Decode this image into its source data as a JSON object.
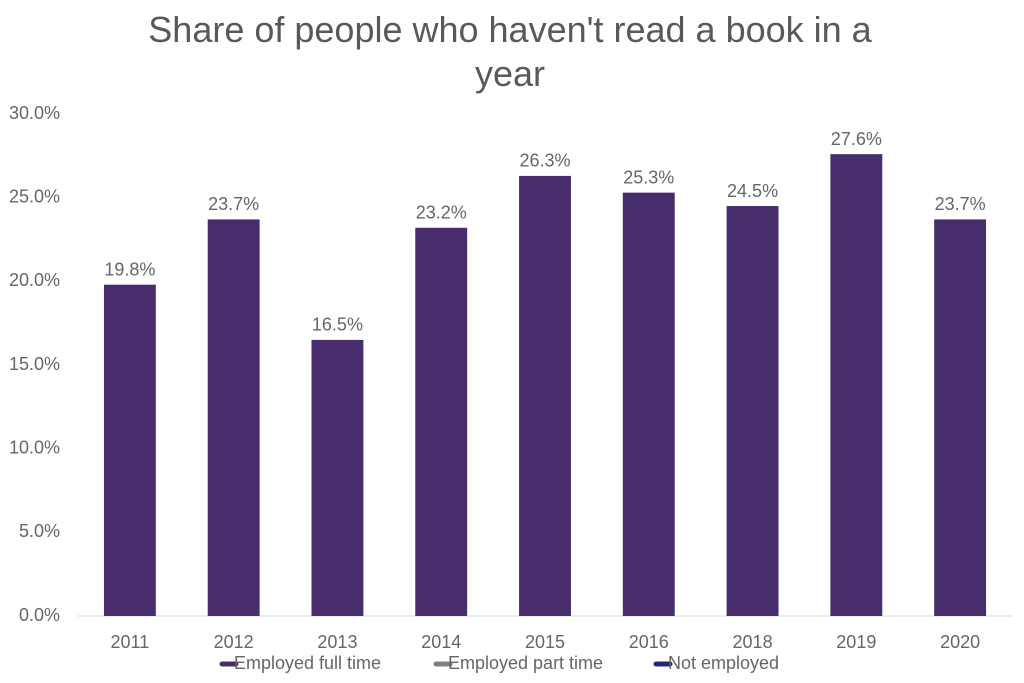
{
  "chart_data": {
    "type": "bar",
    "title": "Share of people who haven't read a book in a year",
    "categories": [
      "2011",
      "2012",
      "2013",
      "2014",
      "2015",
      "2016",
      "2018",
      "2019",
      "2020"
    ],
    "series": [
      {
        "name": "Employed full time",
        "color": "#482d6d",
        "values": [
          19.8,
          23.7,
          16.5,
          23.2,
          26.3,
          25.3,
          24.5,
          27.6,
          23.7
        ],
        "value_labels": [
          "19.8%",
          "23.7%",
          "16.5%",
          "23.2%",
          "26.3%",
          "25.3%",
          "24.5%",
          "27.6%",
          "23.7%"
        ]
      },
      {
        "name": "Employed part time",
        "color": "#808080",
        "values": [
          null,
          null,
          null,
          null,
          null,
          null,
          null,
          null,
          null
        ]
      },
      {
        "name": "Not employed",
        "color": "#1f2a78",
        "values": [
          null,
          null,
          null,
          null,
          null,
          null,
          null,
          null,
          null
        ]
      }
    ],
    "ylim": [
      0,
      30
    ],
    "yticks": [
      {
        "value": 0,
        "label": "0.0%"
      },
      {
        "value": 5,
        "label": "5.0%"
      },
      {
        "value": 10,
        "label": "10.0%"
      },
      {
        "value": 15,
        "label": "15.0%"
      },
      {
        "value": 20,
        "label": "20.0%"
      },
      {
        "value": 25,
        "label": "25.0%"
      },
      {
        "value": 30,
        "label": "30.0%"
      }
    ],
    "grid": false,
    "legend": "bottom"
  }
}
